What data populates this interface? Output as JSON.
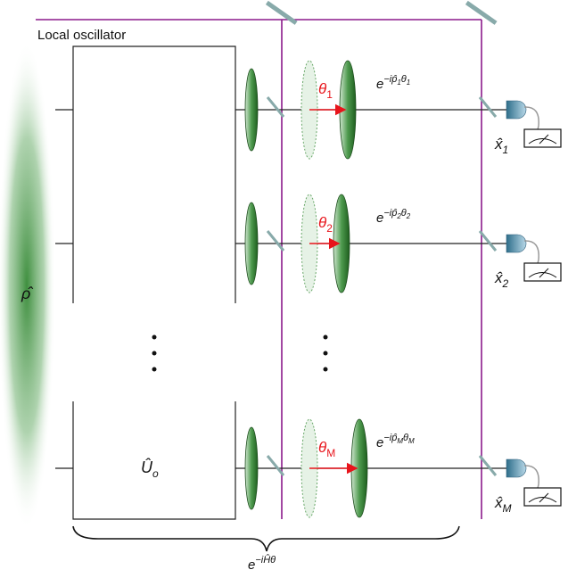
{
  "local_oscillator_label": "Local oscillator",
  "state": {
    "symbol": "ρ̂"
  },
  "unitary": {
    "symbol": "Û",
    "index": "o"
  },
  "modes": [
    {
      "phase": {
        "symbol": "θ",
        "index": "1"
      },
      "generator": {
        "base": "e",
        "exponent": "−ip̂",
        "phase": "θ"
      },
      "measurement": {
        "symbol": "x̂",
        "index": "1"
      }
    },
    {
      "phase": {
        "symbol": "θ",
        "index": "2"
      },
      "generator": {
        "base": "e",
        "exponent": "−ip̂",
        "phase": "θ"
      },
      "measurement": {
        "symbol": "x̂",
        "index": "2"
      }
    },
    {
      "phase": {
        "symbol": "θ",
        "index": "M"
      },
      "generator": {
        "base": "e",
        "exponent": "−ip̂",
        "phase": "θ"
      },
      "measurement": {
        "symbol": "x̂",
        "index": "M"
      }
    }
  ],
  "total": {
    "base": "e",
    "exponent": "−iĤθ"
  }
}
